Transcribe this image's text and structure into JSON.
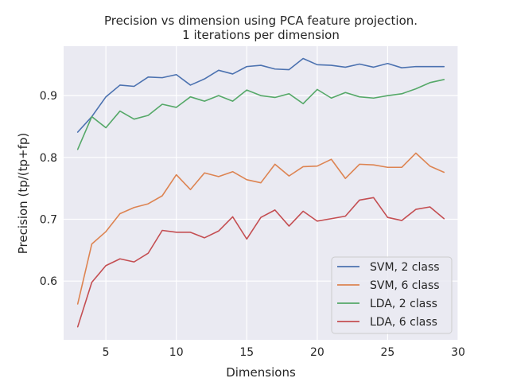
{
  "chart_data": {
    "type": "line",
    "title_lines": [
      "Precision vs dimension using PCA feature projection.",
      "1 iterations per dimension"
    ],
    "xlabel": "Dimensions",
    "ylabel": "Precision (tp/(tp+fp)",
    "xlim": [
      2.0,
      30.0
    ],
    "ylim": [
      0.505,
      0.98
    ],
    "xticks": [
      5,
      10,
      15,
      20,
      25,
      30
    ],
    "yticks": [
      0.6,
      0.7,
      0.8,
      0.9
    ],
    "grid": true,
    "legend_position": "lower-right",
    "x": [
      3,
      4,
      5,
      6,
      7,
      8,
      9,
      10,
      11,
      12,
      13,
      14,
      15,
      16,
      17,
      18,
      19,
      20,
      21,
      22,
      23,
      24,
      25,
      26,
      27,
      28,
      29
    ],
    "series": [
      {
        "name": "SVM, 2 class",
        "color": "#4c72b0",
        "values": [
          0.841,
          0.866,
          0.898,
          0.917,
          0.915,
          0.93,
          0.929,
          0.934,
          0.917,
          0.927,
          0.941,
          0.935,
          0.947,
          0.949,
          0.943,
          0.942,
          0.96,
          0.95,
          0.949,
          0.946,
          0.951,
          0.946,
          0.952,
          0.945,
          0.947,
          0.947,
          0.947
        ]
      },
      {
        "name": "SVM, 6 class",
        "color": "#dd8452",
        "values": [
          0.563,
          0.66,
          0.68,
          0.709,
          0.719,
          0.725,
          0.738,
          0.772,
          0.748,
          0.775,
          0.769,
          0.777,
          0.764,
          0.759,
          0.789,
          0.77,
          0.785,
          0.786,
          0.797,
          0.766,
          0.789,
          0.788,
          0.784,
          0.784,
          0.807,
          0.786,
          0.776
        ]
      },
      {
        "name": "LDA, 2 class",
        "color": "#55a868",
        "values": [
          0.813,
          0.866,
          0.848,
          0.875,
          0.862,
          0.868,
          0.886,
          0.881,
          0.898,
          0.891,
          0.9,
          0.891,
          0.909,
          0.9,
          0.897,
          0.903,
          0.887,
          0.91,
          0.896,
          0.905,
          0.898,
          0.896,
          0.9,
          0.903,
          0.911,
          0.921,
          0.926
        ]
      },
      {
        "name": "LDA, 6 class",
        "color": "#c44e52",
        "values": [
          0.526,
          0.598,
          0.625,
          0.636,
          0.631,
          0.645,
          0.682,
          0.679,
          0.679,
          0.67,
          0.681,
          0.704,
          0.668,
          0.703,
          0.715,
          0.689,
          0.713,
          0.697,
          0.701,
          0.705,
          0.731,
          0.735,
          0.703,
          0.698,
          0.716,
          0.72,
          0.701
        ]
      }
    ]
  }
}
